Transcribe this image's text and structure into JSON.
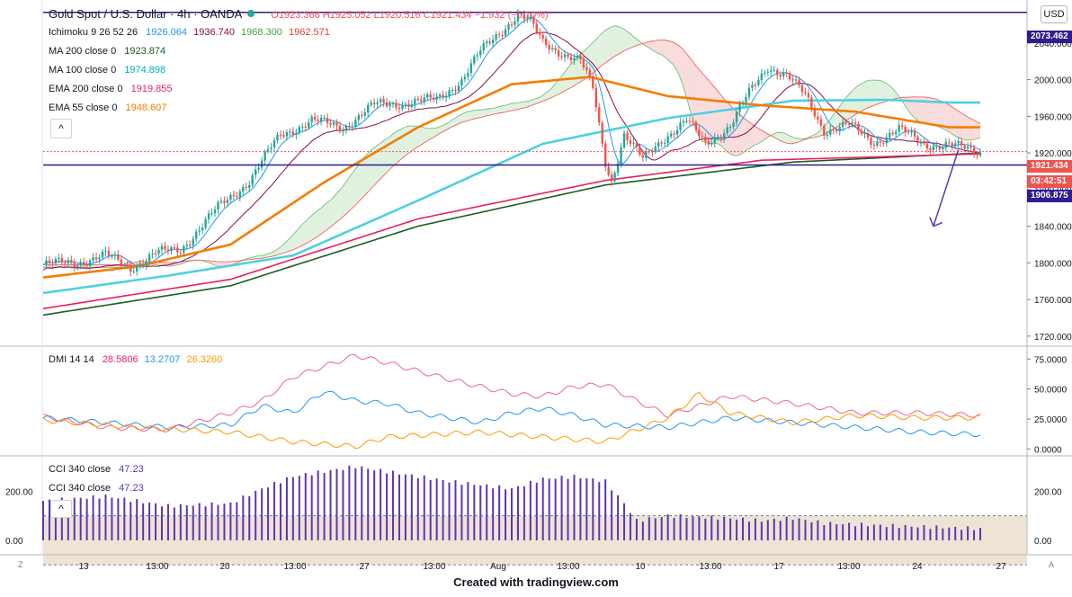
{
  "header": {
    "symbol": "Gold Spot / U.S. Dollar · 4h · OANDA",
    "ohlc": "O1923.366  H1925.052  L1920.516  C1921.434  −1.932 (−0.10%)",
    "currency": "USD",
    "hide_symbol": "^"
  },
  "indicators": {
    "ichimoku": {
      "name": "Ichimoku 9 26 52 26",
      "v1": "1926.064",
      "v2": "1936.740",
      "v3": "1968.300",
      "v4": "1962.571"
    },
    "ma200": {
      "name": "MA 200 close 0",
      "value": "1923.874"
    },
    "ma100": {
      "name": "MA 100 close 0",
      "value": "1974.898"
    },
    "ema200": {
      "name": "EMA 200 close 0",
      "value": "1919.855"
    },
    "ema55": {
      "name": "EMA 55 close 0",
      "value": "1948.607"
    },
    "dmi": {
      "name": "DMI 14 14",
      "v1": "28.5806",
      "v2": "13.2707",
      "v3": "26.3260"
    },
    "cci1": {
      "name": "CCI 340 close",
      "value": "47.23"
    },
    "cci2": {
      "name": "CCI 340 close",
      "value": "47.23"
    }
  },
  "price_tags": {
    "high_line": "2073.462",
    "last": "1921.434",
    "countdown": "03:42:51",
    "support": "1906.875"
  },
  "footer": "Created with tradingview.com",
  "corners": {
    "left": "Z",
    "right": "A"
  },
  "colors": {
    "up": "#26a69a",
    "down": "#ef5350",
    "ma200": "#1b5e20",
    "ma100": "#4dd0e1",
    "ema200": "#e91e63",
    "ema55": "#f57c00",
    "tenkan": "#2196f3",
    "kijun": "#880e4f",
    "cloud_up": "#a5d6a7",
    "cloud_down": "#ef9a9a",
    "support_line": "#311b92",
    "cci": "#5e35b1",
    "dmi_plus": "#2196f3",
    "dmi_minus": "#f06292",
    "adx": "#ff9800"
  },
  "chart_data": [
    {
      "type": "candlestick",
      "ylim": [
        1710,
        2085
      ],
      "yticks": [
        "2040.000",
        "2000.000",
        "1960.000",
        "1920.000",
        "1880.000",
        "1840.000",
        "1800.000",
        "1760.000",
        "1720.000"
      ],
      "xticks": [
        "13",
        "13:00",
        "20",
        "13:00",
        "27",
        "13:00",
        "Aug",
        "13:00",
        "10",
        "13:00",
        "17",
        "13:00",
        "24",
        "27"
      ],
      "anchors": [
        [
          0,
          1798
        ],
        [
          10,
          1800
        ],
        [
          20,
          1808
        ],
        [
          28,
          1795
        ],
        [
          36,
          1810
        ],
        [
          44,
          1815
        ],
        [
          56,
          1860
        ],
        [
          66,
          1890
        ],
        [
          76,
          1940
        ],
        [
          86,
          1955
        ],
        [
          96,
          1948
        ],
        [
          106,
          1972
        ],
        [
          116,
          1975
        ],
        [
          126,
          1978
        ],
        [
          134,
          2000
        ],
        [
          140,
          2030
        ],
        [
          148,
          2058
        ],
        [
          152,
          2072
        ],
        [
          156,
          2062
        ],
        [
          160,
          2040
        ],
        [
          166,
          2030
        ],
        [
          172,
          2020
        ],
        [
          176,
          1990
        ],
        [
          180,
          1910
        ],
        [
          182,
          1890
        ],
        [
          186,
          1940
        ],
        [
          192,
          1912
        ],
        [
          198,
          1935
        ],
        [
          206,
          1955
        ],
        [
          212,
          1930
        ],
        [
          220,
          1950
        ],
        [
          226,
          1985
        ],
        [
          232,
          2015
        ],
        [
          238,
          2005
        ],
        [
          244,
          1982
        ],
        [
          250,
          1945
        ],
        [
          258,
          1950
        ],
        [
          266,
          1932
        ],
        [
          274,
          1945
        ],
        [
          282,
          1930
        ],
        [
          290,
          1928
        ],
        [
          300,
          1921
        ]
      ],
      "overlays": {
        "high_line": 2073.462,
        "support_line": 1906.875,
        "last_price": 1921.434,
        "ma200": [
          [
            0,
            1743
          ],
          [
            60,
            1775
          ],
          [
            120,
            1840
          ],
          [
            180,
            1885
          ],
          [
            240,
            1910
          ],
          [
            300,
            1920
          ]
        ],
        "ma100": [
          [
            0,
            1767
          ],
          [
            40,
            1786
          ],
          [
            80,
            1808
          ],
          [
            120,
            1868
          ],
          [
            160,
            1930
          ],
          [
            200,
            1958
          ],
          [
            240,
            1977
          ],
          [
            270,
            1978
          ],
          [
            290,
            1975
          ]
        ],
        "ema200": [
          [
            0,
            1750
          ],
          [
            60,
            1782
          ],
          [
            120,
            1848
          ],
          [
            180,
            1890
          ],
          [
            230,
            1912
          ],
          [
            300,
            1919
          ]
        ],
        "ema55": [
          [
            0,
            1784
          ],
          [
            30,
            1796
          ],
          [
            60,
            1820
          ],
          [
            90,
            1888
          ],
          [
            120,
            1948
          ],
          [
            150,
            1995
          ],
          [
            175,
            2003
          ],
          [
            200,
            1982
          ],
          [
            230,
            1972
          ],
          [
            260,
            1965
          ],
          [
            290,
            1948
          ]
        ]
      },
      "annotation_arrow": "down"
    },
    {
      "type": "line",
      "ylim": [
        -5,
        85
      ],
      "yticks": [
        "75.0000",
        "50.0000",
        "25.0000",
        "0.0000"
      ],
      "series": [
        {
          "name": "+DI",
          "values": [
            [
              0,
              26
            ],
            [
              20,
              22
            ],
            [
              40,
              18
            ],
            [
              60,
              20
            ],
            [
              70,
              36
            ],
            [
              80,
              30
            ],
            [
              90,
              48
            ],
            [
              100,
              40
            ],
            [
              110,
              38
            ],
            [
              120,
              30
            ],
            [
              140,
              22
            ],
            [
              150,
              30
            ],
            [
              160,
              34
            ],
            [
              170,
              28
            ],
            [
              180,
              20
            ],
            [
              200,
              18
            ],
            [
              220,
              26
            ],
            [
              230,
              24
            ],
            [
              240,
              22
            ],
            [
              260,
              18
            ],
            [
              280,
              14
            ],
            [
              300,
              12
            ]
          ]
        },
        {
          "name": "-DI",
          "values": [
            [
              0,
              27
            ],
            [
              20,
              18
            ],
            [
              40,
              16
            ],
            [
              60,
              30
            ],
            [
              70,
              40
            ],
            [
              80,
              60
            ],
            [
              100,
              78
            ],
            [
              110,
              72
            ],
            [
              130,
              58
            ],
            [
              150,
              46
            ],
            [
              160,
              44
            ],
            [
              170,
              52
            ],
            [
              180,
              54
            ],
            [
              190,
              40
            ],
            [
              200,
              28
            ],
            [
              210,
              36
            ],
            [
              220,
              44
            ],
            [
              240,
              38
            ],
            [
              260,
              30
            ],
            [
              280,
              30
            ],
            [
              300,
              28
            ]
          ]
        },
        {
          "name": "ADX",
          "values": [
            [
              0,
              24
            ],
            [
              30,
              18
            ],
            [
              60,
              14
            ],
            [
              80,
              6
            ],
            [
              100,
              2
            ],
            [
              110,
              10
            ],
            [
              140,
              14
            ],
            [
              160,
              10
            ],
            [
              180,
              6
            ],
            [
              200,
              26
            ],
            [
              210,
              46
            ],
            [
              220,
              30
            ],
            [
              240,
              22
            ],
            [
              260,
              28
            ],
            [
              280,
              26
            ],
            [
              300,
              26
            ]
          ]
        }
      ]
    },
    {
      "type": "bar",
      "ylim": [
        -55,
        340
      ],
      "yticks": [
        "200.00",
        "0.00"
      ],
      "band": [
        -100,
        100
      ],
      "values": [
        [
          0,
          160
        ],
        [
          20,
          180
        ],
        [
          40,
          140
        ],
        [
          60,
          150
        ],
        [
          70,
          210
        ],
        [
          80,
          260
        ],
        [
          100,
          300
        ],
        [
          110,
          280
        ],
        [
          130,
          240
        ],
        [
          150,
          210
        ],
        [
          160,
          250
        ],
        [
          170,
          260
        ],
        [
          180,
          240
        ],
        [
          186,
          150
        ],
        [
          190,
          80
        ],
        [
          200,
          100
        ],
        [
          220,
          90
        ],
        [
          230,
          80
        ],
        [
          240,
          90
        ],
        [
          250,
          70
        ],
        [
          270,
          60
        ],
        [
          290,
          52
        ],
        [
          300,
          47
        ]
      ]
    }
  ]
}
